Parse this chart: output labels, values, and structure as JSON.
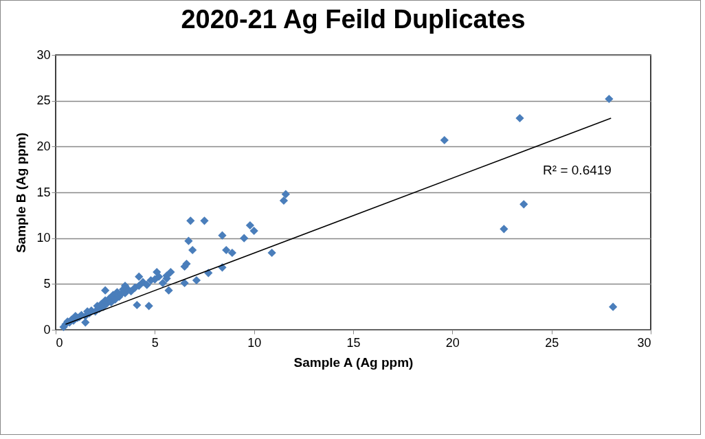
{
  "chart_data": {
    "type": "scatter",
    "title": "2020-21 Ag Feild Duplicates",
    "xlabel": "Sample A (Ag ppm)",
    "ylabel": "Sample B (Ag ppm)",
    "xlim": [
      0,
      30
    ],
    "xticks": [
      0,
      5,
      10,
      15,
      20,
      25,
      30
    ],
    "ylim": [
      0,
      30
    ],
    "yticks": [
      0,
      5,
      10,
      15,
      20,
      25,
      30
    ],
    "grid": "y",
    "marker": "diamond",
    "annotations": [
      "R² = 0.6419"
    ],
    "series": [
      {
        "color": "#4a7ebb",
        "x": [
          0.4,
          0.5,
          0.6,
          0.7,
          0.8,
          0.9,
          1.0,
          1.1,
          1.2,
          1.3,
          1.5,
          1.6,
          1.7,
          1.8,
          2.0,
          2.1,
          2.2,
          2.3,
          2.4,
          2.5,
          2.6,
          2.7,
          2.8,
          2.9,
          3.0,
          3.1,
          3.2,
          3.3,
          3.4,
          3.5,
          3.6,
          3.8,
          4.0,
          4.2,
          4.4,
          4.6,
          4.8,
          5.0,
          5.2,
          5.4,
          5.6,
          2.5,
          3.5,
          4.2,
          5.1,
          5.6,
          5.8,
          5.7,
          4.1,
          4.7,
          1.5,
          6.5,
          6.5,
          6.6,
          7.1,
          7.7,
          6.9,
          6.7,
          6.8,
          7.5,
          8.4,
          8.4,
          8.6,
          8.9,
          9.5,
          10.0,
          9.8,
          11.6,
          11.5,
          10.9,
          19.6,
          23.4,
          27.9,
          22.6,
          23.6,
          28.1
        ],
        "values": [
          0.3,
          0.6,
          0.9,
          0.8,
          1.1,
          1.0,
          1.5,
          1.3,
          1.4,
          1.6,
          1.5,
          2.0,
          1.8,
          2.1,
          2.0,
          2.6,
          2.3,
          2.8,
          2.5,
          3.2,
          2.9,
          3.4,
          3.0,
          3.8,
          3.3,
          4.1,
          3.6,
          3.9,
          4.4,
          4.0,
          4.5,
          4.2,
          4.6,
          4.8,
          5.2,
          4.9,
          5.4,
          5.5,
          5.8,
          5.1,
          5.6,
          4.3,
          4.8,
          5.8,
          6.3,
          5.9,
          6.3,
          4.3,
          2.7,
          2.6,
          0.8,
          5.1,
          6.9,
          7.2,
          5.4,
          6.2,
          8.7,
          9.7,
          11.9,
          11.9,
          6.8,
          10.3,
          8.7,
          8.4,
          10.0,
          10.8,
          11.4,
          14.8,
          14.1,
          8.4,
          20.7,
          23.1,
          25.2,
          11.0,
          13.7,
          2.5
        ]
      },
      {
        "type": "line",
        "color": "#000000",
        "marker": "none",
        "x": [
          0.5,
          28.0
        ],
        "values": [
          0.6,
          23.1
        ]
      }
    ]
  }
}
